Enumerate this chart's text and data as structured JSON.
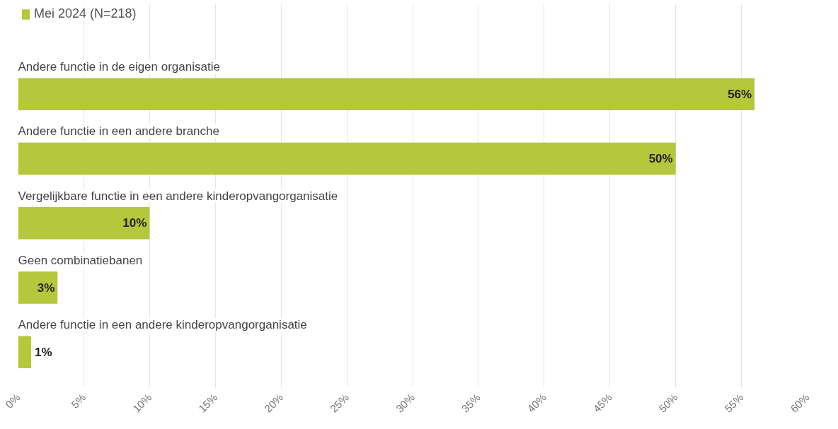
{
  "chart_data": {
    "type": "bar",
    "orientation": "horizontal",
    "categories": [
      "Andere functie in de eigen organisatie",
      "Andere functie in een andere branche",
      "Vergelijkbare functie in een andere kinderopvangorganisatie",
      "Geen combinatiebanen",
      "Andere functie in een andere kinderopvangorganisatie"
    ],
    "series": [
      {
        "name": "Mei 2024 (N=218)",
        "color": "#b5c73b",
        "values": [
          56,
          50,
          10,
          3,
          1
        ],
        "value_labels": [
          "56%",
          "50%",
          "10%",
          "3%",
          "1%"
        ]
      }
    ],
    "xlim": [
      0,
      60
    ],
    "xticks": [
      {
        "value": 0,
        "label": "0%"
      },
      {
        "value": 5,
        "label": "5%"
      },
      {
        "value": 10,
        "label": "10%"
      },
      {
        "value": 15,
        "label": "15%"
      },
      {
        "value": 20,
        "label": "20%"
      },
      {
        "value": 25,
        "label": "25%"
      },
      {
        "value": 30,
        "label": "30%"
      },
      {
        "value": 35,
        "label": "35%"
      },
      {
        "value": 40,
        "label": "40%"
      },
      {
        "value": 45,
        "label": "45%"
      },
      {
        "value": 50,
        "label": "50%"
      },
      {
        "value": 55,
        "label": "55%"
      },
      {
        "value": 60,
        "label": "60%"
      }
    ],
    "grid": "x",
    "legend": "top left"
  }
}
